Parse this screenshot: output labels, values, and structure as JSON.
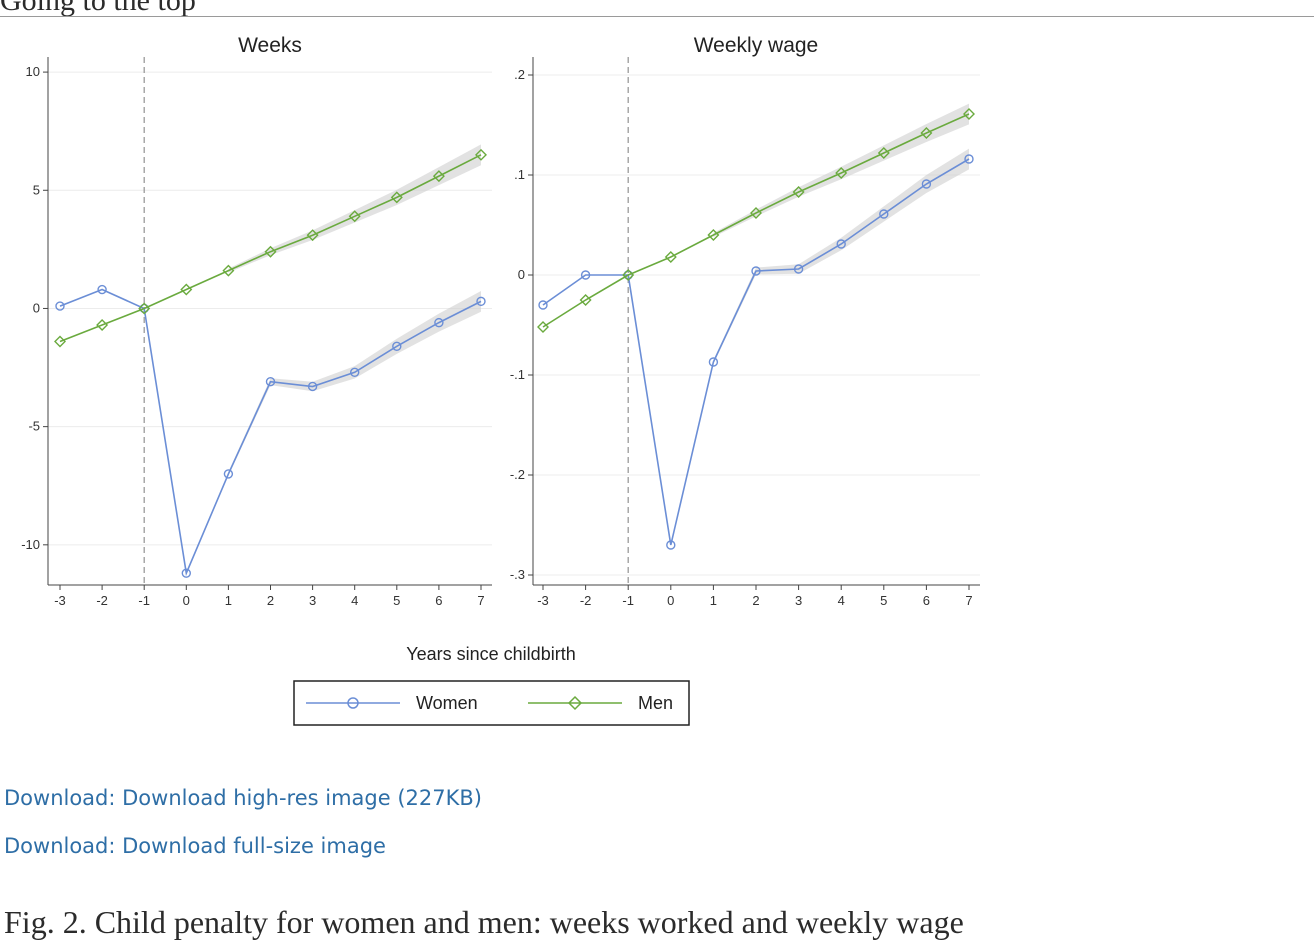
{
  "header_fragment": "Going to the top",
  "chart_data": [
    {
      "type": "line",
      "title": "Weeks",
      "xlabel": "Years since childbirth",
      "ylabel": "",
      "x": [
        -3,
        -2,
        -1,
        0,
        1,
        2,
        3,
        4,
        5,
        6,
        7
      ],
      "xtick_labels": [
        "-3",
        "-2",
        "-1",
        "0",
        "1",
        "2",
        "3",
        "4",
        "5",
        "6",
        "7"
      ],
      "ylim": [
        -11.7,
        10.3
      ],
      "yticks": [
        10,
        5,
        0,
        -5,
        -10
      ],
      "ytick_labels": [
        "10",
        "5",
        "0",
        "-5",
        "-10"
      ],
      "reference_line_x": -1,
      "series": [
        {
          "name": "Women",
          "color": "#6b8ed6",
          "marker": "circle",
          "values": [
            0.1,
            0.8,
            0.0,
            -11.2,
            -7.0,
            -3.1,
            -3.3,
            -2.7,
            -1.6,
            -0.6,
            0.3
          ]
        },
        {
          "name": "Men",
          "color": "#6aaa3e",
          "marker": "diamond",
          "values": [
            -1.4,
            -0.7,
            0.0,
            0.8,
            1.6,
            2.4,
            3.1,
            3.9,
            4.7,
            5.6,
            6.5
          ]
        }
      ]
    },
    {
      "type": "line",
      "title": "Weekly wage",
      "xlabel": "Years since childbirth",
      "ylabel": "",
      "x": [
        -3,
        -2,
        -1,
        0,
        1,
        2,
        3,
        4,
        5,
        6,
        7
      ],
      "xtick_labels": [
        "-3",
        "-2",
        "-1",
        "0",
        "1",
        "2",
        "3",
        "4",
        "5",
        "6",
        "7"
      ],
      "ylim": [
        -0.31,
        0.21
      ],
      "yticks": [
        0.2,
        0.1,
        0,
        -0.1,
        -0.2,
        -0.3
      ],
      "ytick_labels": [
        ".2",
        ".1",
        "0",
        "-.1",
        "-.2",
        "-.3"
      ],
      "reference_line_x": -1,
      "series": [
        {
          "name": "Women",
          "color": "#6b8ed6",
          "marker": "circle",
          "values": [
            -0.03,
            0.0,
            0.0,
            -0.27,
            -0.087,
            0.004,
            0.006,
            0.031,
            0.061,
            0.091,
            0.116
          ]
        },
        {
          "name": "Men",
          "color": "#6aaa3e",
          "marker": "diamond",
          "values": [
            -0.052,
            -0.025,
            0.0,
            0.018,
            0.04,
            0.062,
            0.083,
            0.102,
            0.122,
            0.142,
            0.161
          ]
        }
      ]
    }
  ],
  "legend": [
    {
      "label": "Women",
      "color": "#6b8ed6",
      "marker": "circle"
    },
    {
      "label": "Men",
      "color": "#6aaa3e",
      "marker": "diamond"
    }
  ],
  "links": {
    "hires": "Download: Download high-res image (227KB)",
    "full": "Download: Download full-size image"
  },
  "caption": "Fig. 2. Child penalty for women and men: weeks worked and weekly wage"
}
